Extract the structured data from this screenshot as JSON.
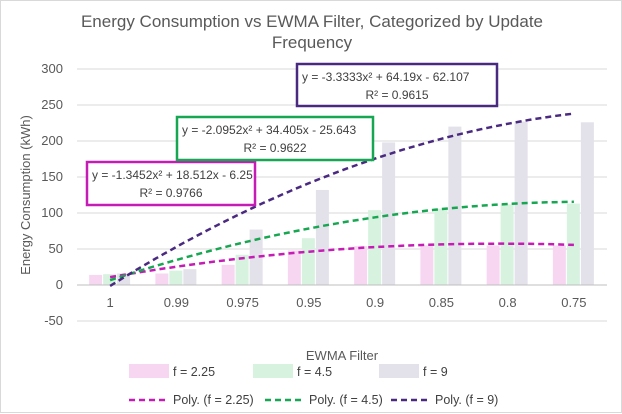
{
  "chart_data": {
    "type": "bar",
    "title": "Energy Consumption vs EWMA Filter, Categorized by Update Frequency",
    "title_lines": [
      "Energy Consumption vs EWMA Filter, Categorized by Update",
      "Frequency"
    ],
    "xlabel": "EWMA Filter",
    "ylabel": "Energy Consumption (kWh)",
    "categories": [
      "1",
      "0.99",
      "0.975",
      "0.95",
      "0.9",
      "0.85",
      "0.8",
      "0.75"
    ],
    "ylim": [
      -50,
      300
    ],
    "yticks": [
      "300",
      "250",
      "200",
      "150",
      "100",
      "50",
      "0",
      "-50"
    ],
    "ytick_values": [
      300,
      250,
      200,
      150,
      100,
      50,
      0,
      -50
    ],
    "grid": true,
    "series": [
      {
        "name": "f = 2.25",
        "values": [
          14,
          16,
          28,
          48,
          54,
          55,
          55,
          55
        ],
        "color": "#f7d6f2"
      },
      {
        "name": "f = 4.5",
        "values": [
          15,
          20,
          42,
          65,
          104,
          106,
          112,
          113
        ],
        "color": "#d7f2df"
      },
      {
        "name": "f = 9",
        "values": [
          16,
          22,
          77,
          132,
          198,
          220,
          227,
          226
        ],
        "color": "#e3e1ea"
      }
    ],
    "trendlines": [
      {
        "name": "Poly. (f = 2.25)",
        "color": "#c41cb4",
        "coef": [
          -1.3452,
          18.512,
          -6.25
        ],
        "equation": "y = -1.3452x² + 18.512x - 6.25",
        "r2": "R² = 0.9766"
      },
      {
        "name": "Poly. (f = 4.5)",
        "color": "#17a651",
        "coef": [
          -2.0952,
          34.405,
          -25.643
        ],
        "equation": "y = -2.0952x² + 34.405x - 25.643",
        "r2": "R² = 0.9622"
      },
      {
        "name": "Poly. (f = 9)",
        "color": "#4a2a80",
        "coef": [
          -3.3333,
          64.19,
          -62.107
        ],
        "equation": "y = -3.3333x² + 64.19x - 62.107",
        "r2": "R² = 0.9615"
      }
    ],
    "legend_placement": "bottom"
  }
}
